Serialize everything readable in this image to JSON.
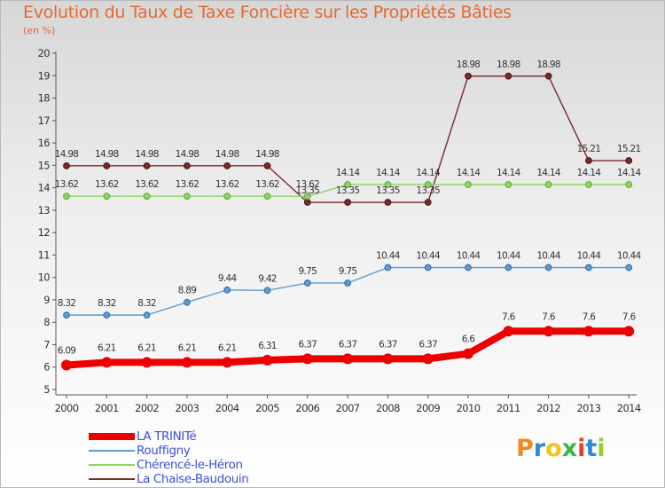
{
  "header": {
    "title": "Evolution du Taux de Taxe Foncière sur les Propriétés Bâties",
    "unit": "(en %)"
  },
  "chart_data": {
    "type": "line",
    "title": "Evolution du Taux de Taxe Foncière sur les Propriétés Bâties",
    "ylabel": "(en %)",
    "xlabel": "",
    "ylim": [
      5,
      20
    ],
    "grid": false,
    "categories": [
      "2000",
      "2001",
      "2002",
      "2003",
      "2004",
      "2005",
      "2006",
      "2007",
      "2008",
      "2009",
      "2010",
      "2011",
      "2012",
      "2013",
      "2014"
    ],
    "y_ticks": [
      "5",
      "6",
      "7",
      "8",
      "9",
      "10",
      "11",
      "12",
      "13",
      "14",
      "15",
      "16",
      "17",
      "18",
      "19",
      "20"
    ],
    "series": [
      {
        "name": "LA TRINITé",
        "color": "#ee0000",
        "values": [
          6.09,
          6.21,
          6.21,
          6.21,
          6.21,
          6.31,
          6.37,
          6.37,
          6.37,
          6.37,
          6.6,
          7.6,
          7.6,
          7.6,
          7.6
        ],
        "labels": [
          "6.09",
          "6.21",
          "6.21",
          "6.21",
          "6.21",
          "6.31",
          "6.37",
          "6.37",
          "6.37",
          "6.37",
          "6.6",
          "7.6",
          "7.6",
          "7.6",
          "7.6"
        ]
      },
      {
        "name": "Rouffigny",
        "color": "#5d9bd4",
        "values": [
          8.32,
          8.32,
          8.32,
          8.89,
          9.44,
          9.42,
          9.75,
          9.75,
          10.44,
          10.44,
          10.44,
          10.44,
          10.44,
          10.44,
          10.44
        ],
        "labels": [
          "8.32",
          "8.32",
          "8.32",
          "8.89",
          "9.44",
          "9.42",
          "9.75",
          "9.75",
          "10.44",
          "10.44",
          "10.44",
          "10.44",
          "10.44",
          "10.44",
          "10.44"
        ]
      },
      {
        "name": "Chérencé-le-Héron",
        "color": "#8fd45e",
        "values": [
          13.62,
          13.62,
          13.62,
          13.62,
          13.62,
          13.62,
          13.62,
          14.14,
          14.14,
          14.14,
          14.14,
          14.14,
          14.14,
          14.14,
          14.14
        ],
        "labels": [
          "13.62",
          "13.62",
          "13.62",
          "13.62",
          "13.62",
          "13.62",
          "13.62",
          "14.14",
          "14.14",
          "14.14",
          "14.14",
          "14.14",
          "14.14",
          "14.14",
          "14.14"
        ]
      },
      {
        "name": "La Chaise-Baudouin",
        "color": "#7a2a2a",
        "values": [
          14.98,
          14.98,
          14.98,
          14.98,
          14.98,
          14.98,
          13.35,
          13.35,
          13.35,
          13.35,
          18.98,
          18.98,
          18.98,
          15.21,
          15.21
        ],
        "labels": [
          "14.98",
          "14.98",
          "14.98",
          "14.98",
          "14.98",
          "14.98",
          "13.35",
          "13.35",
          "13.35",
          "13.35",
          "18.98",
          "18.98",
          "18.98",
          "15.21",
          "15.21"
        ]
      }
    ]
  },
  "legend": {
    "items": [
      {
        "label": "LA TRINITé"
      },
      {
        "label": "Rouffigny"
      },
      {
        "label": "Chérencé-le-Héron"
      },
      {
        "label": "La Chaise-Baudouin"
      }
    ]
  },
  "logo": {
    "letters": [
      "P",
      "r",
      "o",
      "x",
      "i",
      "t",
      "i"
    ],
    "colors": [
      "#f08a1c",
      "#2b8ad8",
      "#f0c419",
      "#3db54a",
      "#e8402a",
      "#2b8ad8",
      "#9cc92f"
    ]
  }
}
